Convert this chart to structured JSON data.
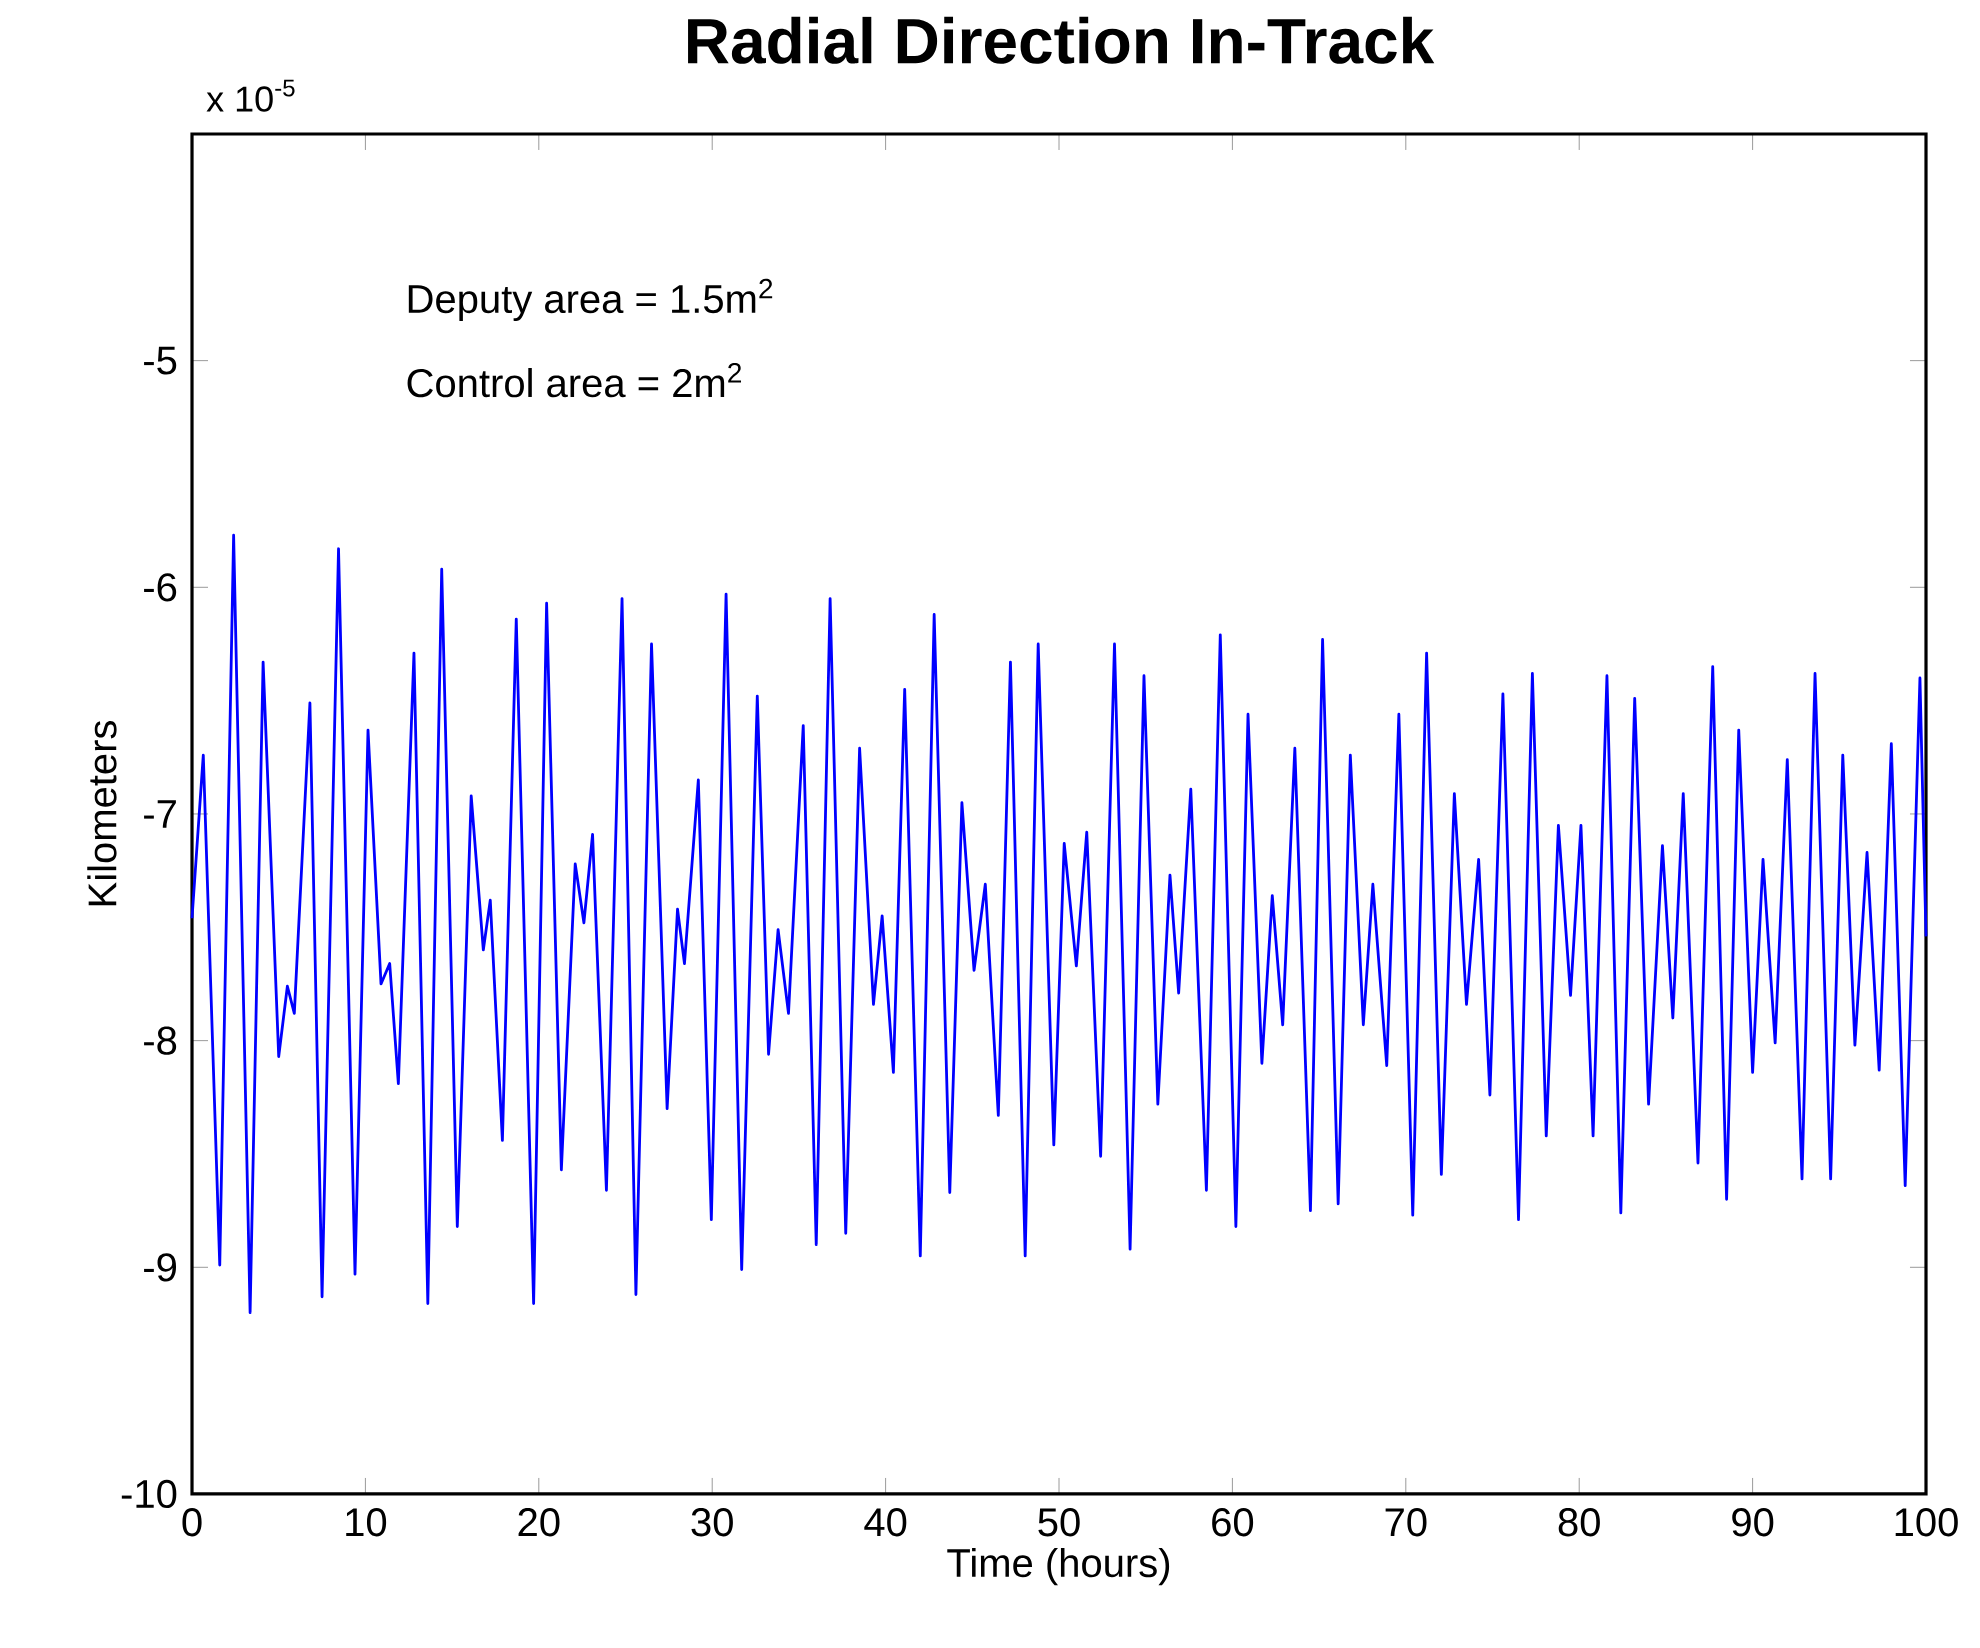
{
  "chart_data": {
    "type": "line",
    "title": "Radial Direction In-Track",
    "xlabel": "Time (hours)",
    "ylabel": "Kilometers",
    "annotations": [
      "x 10$^{-5}$",
      "Deputy area = 1.5m$^{2}$",
      "Control area = 2m$^{2}$"
    ],
    "xlim": [
      0,
      100
    ],
    "ylim": [
      -10,
      -4
    ],
    "xticks": [
      0,
      10,
      20,
      30,
      40,
      50,
      60,
      70,
      80,
      90,
      100
    ],
    "yticks": [
      -10,
      -9,
      -8,
      -7,
      -6,
      -5
    ],
    "grid": false,
    "marker": "none",
    "line_style": "solid",
    "series": [
      {
        "color": "#0000ff",
        "x": [
          0,
          0.65,
          1.6,
          2.4,
          3.35,
          4.1,
          5.0,
          5.5,
          5.9,
          6.8,
          7.5,
          8.45,
          9.4,
          10.15,
          10.9,
          11.4,
          11.9,
          12.8,
          13.6,
          14.4,
          15.3,
          16.1,
          16.8,
          17.2,
          17.9,
          18.7,
          19.7,
          20.45,
          21.3,
          22.1,
          22.6,
          23.1,
          23.9,
          24.8,
          25.6,
          26.5,
          27.4,
          28.0,
          28.4,
          29.2,
          29.95,
          30.8,
          31.7,
          32.6,
          33.25,
          33.8,
          34.4,
          35.25,
          36.0,
          36.8,
          37.7,
          38.5,
          39.3,
          39.8,
          40.45,
          41.1,
          42.0,
          42.8,
          43.7,
          44.4,
          45.1,
          45.75,
          46.5,
          47.2,
          48.05,
          48.8,
          49.7,
          50.3,
          51.0,
          51.6,
          52.4,
          53.2,
          54.1,
          54.9,
          55.7,
          56.4,
          56.9,
          57.6,
          58.5,
          59.3,
          60.2,
          60.9,
          61.7,
          62.3,
          62.9,
          63.6,
          64.5,
          65.2,
          66.1,
          66.8,
          67.55,
          68.1,
          68.9,
          69.6,
          70.4,
          71.2,
          72.05,
          72.8,
          73.5,
          74.2,
          74.85,
          75.6,
          76.5,
          77.3,
          78.1,
          78.8,
          79.5,
          80.1,
          80.8,
          81.6,
          82.4,
          83.2,
          84.0,
          84.8,
          85.4,
          86.0,
          86.85,
          87.7,
          88.5,
          89.2,
          90.0,
          90.6,
          91.3,
          92.0,
          92.85,
          93.6,
          94.5,
          95.2,
          95.9,
          96.6,
          97.3,
          98.0,
          98.8,
          99.65,
          100
        ],
        "values": [
          -7.46,
          -6.74,
          -8.99,
          -5.77,
          -9.2,
          -6.33,
          -8.07,
          -7.76,
          -7.88,
          -6.51,
          -9.13,
          -5.83,
          -9.03,
          -6.63,
          -7.75,
          -7.66,
          -8.19,
          -6.29,
          -9.16,
          -5.92,
          -8.82,
          -6.92,
          -7.6,
          -7.38,
          -8.44,
          -6.14,
          -9.16,
          -6.07,
          -8.57,
          -7.22,
          -7.48,
          -7.09,
          -8.66,
          -6.05,
          -9.12,
          -6.25,
          -8.3,
          -7.42,
          -7.66,
          -6.85,
          -8.79,
          -6.03,
          -9.01,
          -6.48,
          -8.06,
          -7.51,
          -7.88,
          -6.61,
          -8.9,
          -6.05,
          -8.85,
          -6.71,
          -7.84,
          -7.45,
          -8.14,
          -6.45,
          -8.95,
          -6.12,
          -8.67,
          -6.95,
          -7.69,
          -7.31,
          -8.33,
          -6.33,
          -8.95,
          -6.25,
          -8.46,
          -7.13,
          -7.67,
          -7.08,
          -8.51,
          -6.25,
          -8.92,
          -6.39,
          -8.28,
          -7.27,
          -7.79,
          -6.89,
          -8.66,
          -6.21,
          -8.82,
          -6.56,
          -8.1,
          -7.36,
          -7.93,
          -6.71,
          -8.75,
          -6.23,
          -8.72,
          -6.74,
          -7.93,
          -7.31,
          -8.11,
          -6.56,
          -8.77,
          -6.29,
          -8.59,
          -6.91,
          -7.84,
          -7.2,
          -8.24,
          -6.47,
          -8.79,
          -6.38,
          -8.42,
          -7.05,
          -7.8,
          -7.05,
          -8.42,
          -6.39,
          -8.76,
          -6.49,
          -8.28,
          -7.14,
          -7.9,
          -6.91,
          -8.54,
          -6.35,
          -8.7,
          -6.63,
          -8.14,
          -7.2,
          -8.01,
          -6.76,
          -8.61,
          -6.38,
          -8.61,
          -6.74,
          -8.02,
          -7.17,
          -8.13,
          -6.69,
          -8.64,
          -6.4,
          -7.54
        ]
      }
    ]
  }
}
